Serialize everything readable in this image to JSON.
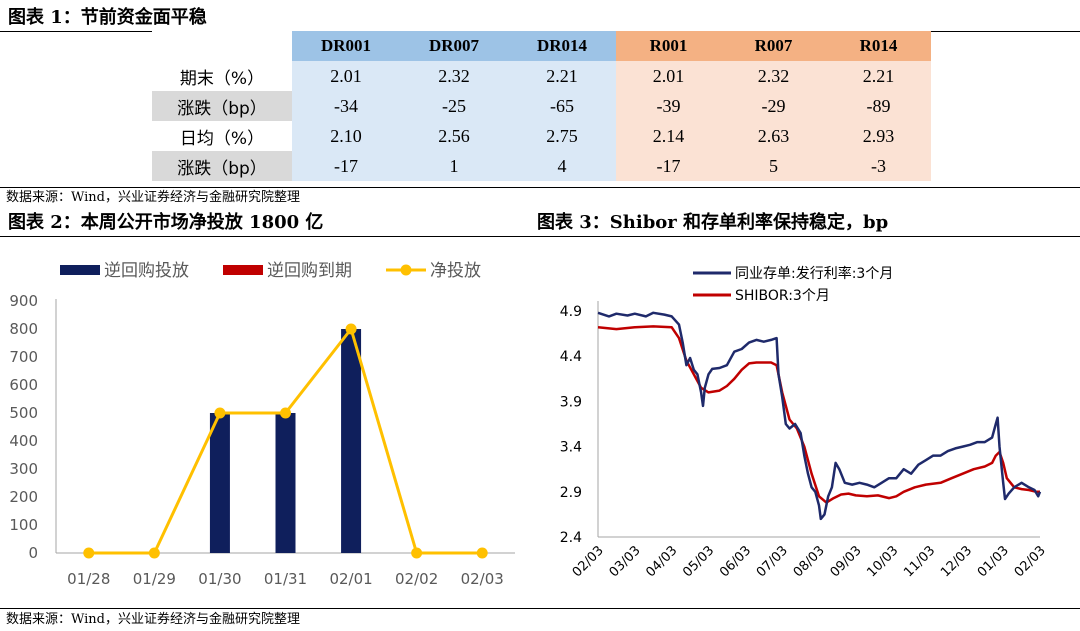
{
  "header1": "图表 1：节前资金面平稳",
  "table": {
    "columns": [
      "DR001",
      "DR007",
      "DR014",
      "R001",
      "R007",
      "R014"
    ],
    "rows": [
      {
        "label": "期末（%）",
        "values": [
          "2.01",
          "2.32",
          "2.21",
          "2.01",
          "2.32",
          "2.21"
        ]
      },
      {
        "label": "涨跌（bp）",
        "values": [
          "-34",
          "-25",
          "-65",
          "-39",
          "-29",
          "-89"
        ]
      },
      {
        "label": "日均（%）",
        "values": [
          "2.10",
          "2.56",
          "2.75",
          "2.14",
          "2.63",
          "2.93"
        ]
      },
      {
        "label": "涨跌（bp）",
        "values": [
          "-17",
          "1",
          "4",
          "-17",
          "5",
          "-3"
        ]
      }
    ]
  },
  "source1": "数据来源：Wind，兴业证券经济与金融研究院整理",
  "header2": "图表 2：本周公开市场净投放 1800 亿",
  "header3": "图表 3：Shibor 和存单利率保持稳定，bp",
  "source2": "数据来源：Wind，兴业证券经济与金融研究院整理",
  "chart_data": [
    {
      "type": "bar",
      "categories": [
        "01/28",
        "01/29",
        "01/30",
        "01/31",
        "02/01",
        "02/02",
        "02/03"
      ],
      "series": [
        {
          "name": "逆回购投放",
          "type": "bar",
          "color": "#0f1f5c",
          "values": [
            0,
            0,
            500,
            500,
            800,
            0,
            0
          ]
        },
        {
          "name": "逆回购到期",
          "type": "bar",
          "color": "#c00000",
          "values": [
            0,
            0,
            0,
            0,
            0,
            0,
            0
          ]
        },
        {
          "name": "净投放",
          "type": "line",
          "color": "#ffc000",
          "values": [
            0,
            0,
            500,
            500,
            800,
            0,
            0
          ]
        }
      ],
      "ylim": [
        0,
        900
      ],
      "yticks": [
        "0",
        "100",
        "200",
        "300",
        "400",
        "500",
        "600",
        "700",
        "800",
        "900"
      ],
      "legend": "top",
      "grid": false
    },
    {
      "type": "line",
      "x_labels": [
        "02/03",
        "03/03",
        "04/03",
        "05/03",
        "06/03",
        "07/03",
        "08/03",
        "09/03",
        "10/03",
        "11/03",
        "12/03",
        "01/03",
        "02/03"
      ],
      "ylim": [
        2.4,
        4.9
      ],
      "yticks": [
        "2.4",
        "2.9",
        "3.4",
        "3.9",
        "4.4",
        "4.9"
      ],
      "legend": "top-left",
      "grid": false,
      "series": [
        {
          "name": "同业存单:发行利率:3个月",
          "color": "#1f2a6b",
          "points": [
            [
              0,
              4.88
            ],
            [
              0.3,
              4.84
            ],
            [
              0.5,
              4.87
            ],
            [
              0.8,
              4.85
            ],
            [
              1.0,
              4.87
            ],
            [
              1.3,
              4.84
            ],
            [
              1.5,
              4.88
            ],
            [
              1.8,
              4.86
            ],
            [
              2.0,
              4.84
            ],
            [
              2.2,
              4.75
            ],
            [
              2.3,
              4.55
            ],
            [
              2.4,
              4.3
            ],
            [
              2.5,
              4.38
            ],
            [
              2.6,
              4.25
            ],
            [
              2.7,
              4.2
            ],
            [
              2.8,
              4.0
            ],
            [
              2.85,
              3.85
            ],
            [
              2.9,
              4.05
            ],
            [
              3.0,
              4.2
            ],
            [
              3.1,
              4.26
            ],
            [
              3.3,
              4.27
            ],
            [
              3.5,
              4.3
            ],
            [
              3.7,
              4.45
            ],
            [
              3.9,
              4.48
            ],
            [
              4.1,
              4.55
            ],
            [
              4.3,
              4.58
            ],
            [
              4.5,
              4.56
            ],
            [
              4.7,
              4.58
            ],
            [
              4.85,
              4.6
            ],
            [
              4.9,
              4.2
            ],
            [
              5.0,
              3.95
            ],
            [
              5.1,
              3.65
            ],
            [
              5.2,
              3.6
            ],
            [
              5.35,
              3.65
            ],
            [
              5.5,
              3.55
            ],
            [
              5.6,
              3.3
            ],
            [
              5.7,
              3.1
            ],
            [
              5.8,
              2.95
            ],
            [
              5.9,
              2.9
            ],
            [
              6.0,
              2.75
            ],
            [
              6.05,
              2.6
            ],
            [
              6.15,
              2.65
            ],
            [
              6.25,
              2.85
            ],
            [
              6.35,
              2.95
            ],
            [
              6.45,
              3.22
            ],
            [
              6.55,
              3.15
            ],
            [
              6.7,
              3.0
            ],
            [
              6.9,
              2.98
            ],
            [
              7.1,
              3.0
            ],
            [
              7.3,
              2.98
            ],
            [
              7.5,
              2.95
            ],
            [
              7.7,
              3.0
            ],
            [
              7.9,
              3.05
            ],
            [
              8.1,
              3.05
            ],
            [
              8.3,
              3.15
            ],
            [
              8.5,
              3.1
            ],
            [
              8.7,
              3.2
            ],
            [
              8.9,
              3.25
            ],
            [
              9.1,
              3.3
            ],
            [
              9.3,
              3.3
            ],
            [
              9.5,
              3.35
            ],
            [
              9.7,
              3.38
            ],
            [
              9.9,
              3.4
            ],
            [
              10.1,
              3.42
            ],
            [
              10.3,
              3.45
            ],
            [
              10.5,
              3.45
            ],
            [
              10.7,
              3.5
            ],
            [
              10.8,
              3.65
            ],
            [
              10.85,
              3.72
            ],
            [
              10.9,
              3.4
            ],
            [
              11.0,
              3.0
            ],
            [
              11.05,
              2.82
            ],
            [
              11.15,
              2.88
            ],
            [
              11.3,
              2.95
            ],
            [
              11.5,
              3.0
            ],
            [
              11.7,
              2.95
            ],
            [
              11.85,
              2.92
            ],
            [
              11.95,
              2.85
            ],
            [
              12.0,
              2.9
            ]
          ]
        },
        {
          "name": "SHIBOR:3个月",
          "color": "#c00000",
          "points": [
            [
              0,
              4.72
            ],
            [
              0.5,
              4.7
            ],
            [
              1.0,
              4.72
            ],
            [
              1.5,
              4.73
            ],
            [
              2.0,
              4.72
            ],
            [
              2.2,
              4.6
            ],
            [
              2.4,
              4.35
            ],
            [
              2.6,
              4.2
            ],
            [
              2.8,
              4.05
            ],
            [
              3.0,
              4.0
            ],
            [
              3.3,
              4.02
            ],
            [
              3.5,
              4.07
            ],
            [
              3.7,
              4.15
            ],
            [
              3.9,
              4.25
            ],
            [
              4.1,
              4.32
            ],
            [
              4.3,
              4.33
            ],
            [
              4.5,
              4.33
            ],
            [
              4.7,
              4.33
            ],
            [
              4.85,
              4.3
            ],
            [
              5.0,
              4.0
            ],
            [
              5.2,
              3.7
            ],
            [
              5.4,
              3.6
            ],
            [
              5.6,
              3.4
            ],
            [
              5.8,
              3.1
            ],
            [
              6.0,
              2.85
            ],
            [
              6.2,
              2.78
            ],
            [
              6.4,
              2.83
            ],
            [
              6.6,
              2.87
            ],
            [
              6.8,
              2.88
            ],
            [
              7.0,
              2.86
            ],
            [
              7.3,
              2.85
            ],
            [
              7.6,
              2.86
            ],
            [
              7.9,
              2.83
            ],
            [
              8.1,
              2.85
            ],
            [
              8.3,
              2.9
            ],
            [
              8.6,
              2.95
            ],
            [
              8.9,
              2.98
            ],
            [
              9.3,
              3.0
            ],
            [
              9.6,
              3.05
            ],
            [
              9.9,
              3.1
            ],
            [
              10.2,
              3.15
            ],
            [
              10.5,
              3.18
            ],
            [
              10.7,
              3.22
            ],
            [
              10.8,
              3.3
            ],
            [
              10.9,
              3.34
            ],
            [
              11.0,
              3.22
            ],
            [
              11.1,
              3.05
            ],
            [
              11.3,
              2.95
            ],
            [
              11.5,
              2.93
            ],
            [
              11.7,
              2.92
            ],
            [
              11.9,
              2.9
            ],
            [
              12.0,
              2.9
            ]
          ]
        }
      ]
    }
  ]
}
